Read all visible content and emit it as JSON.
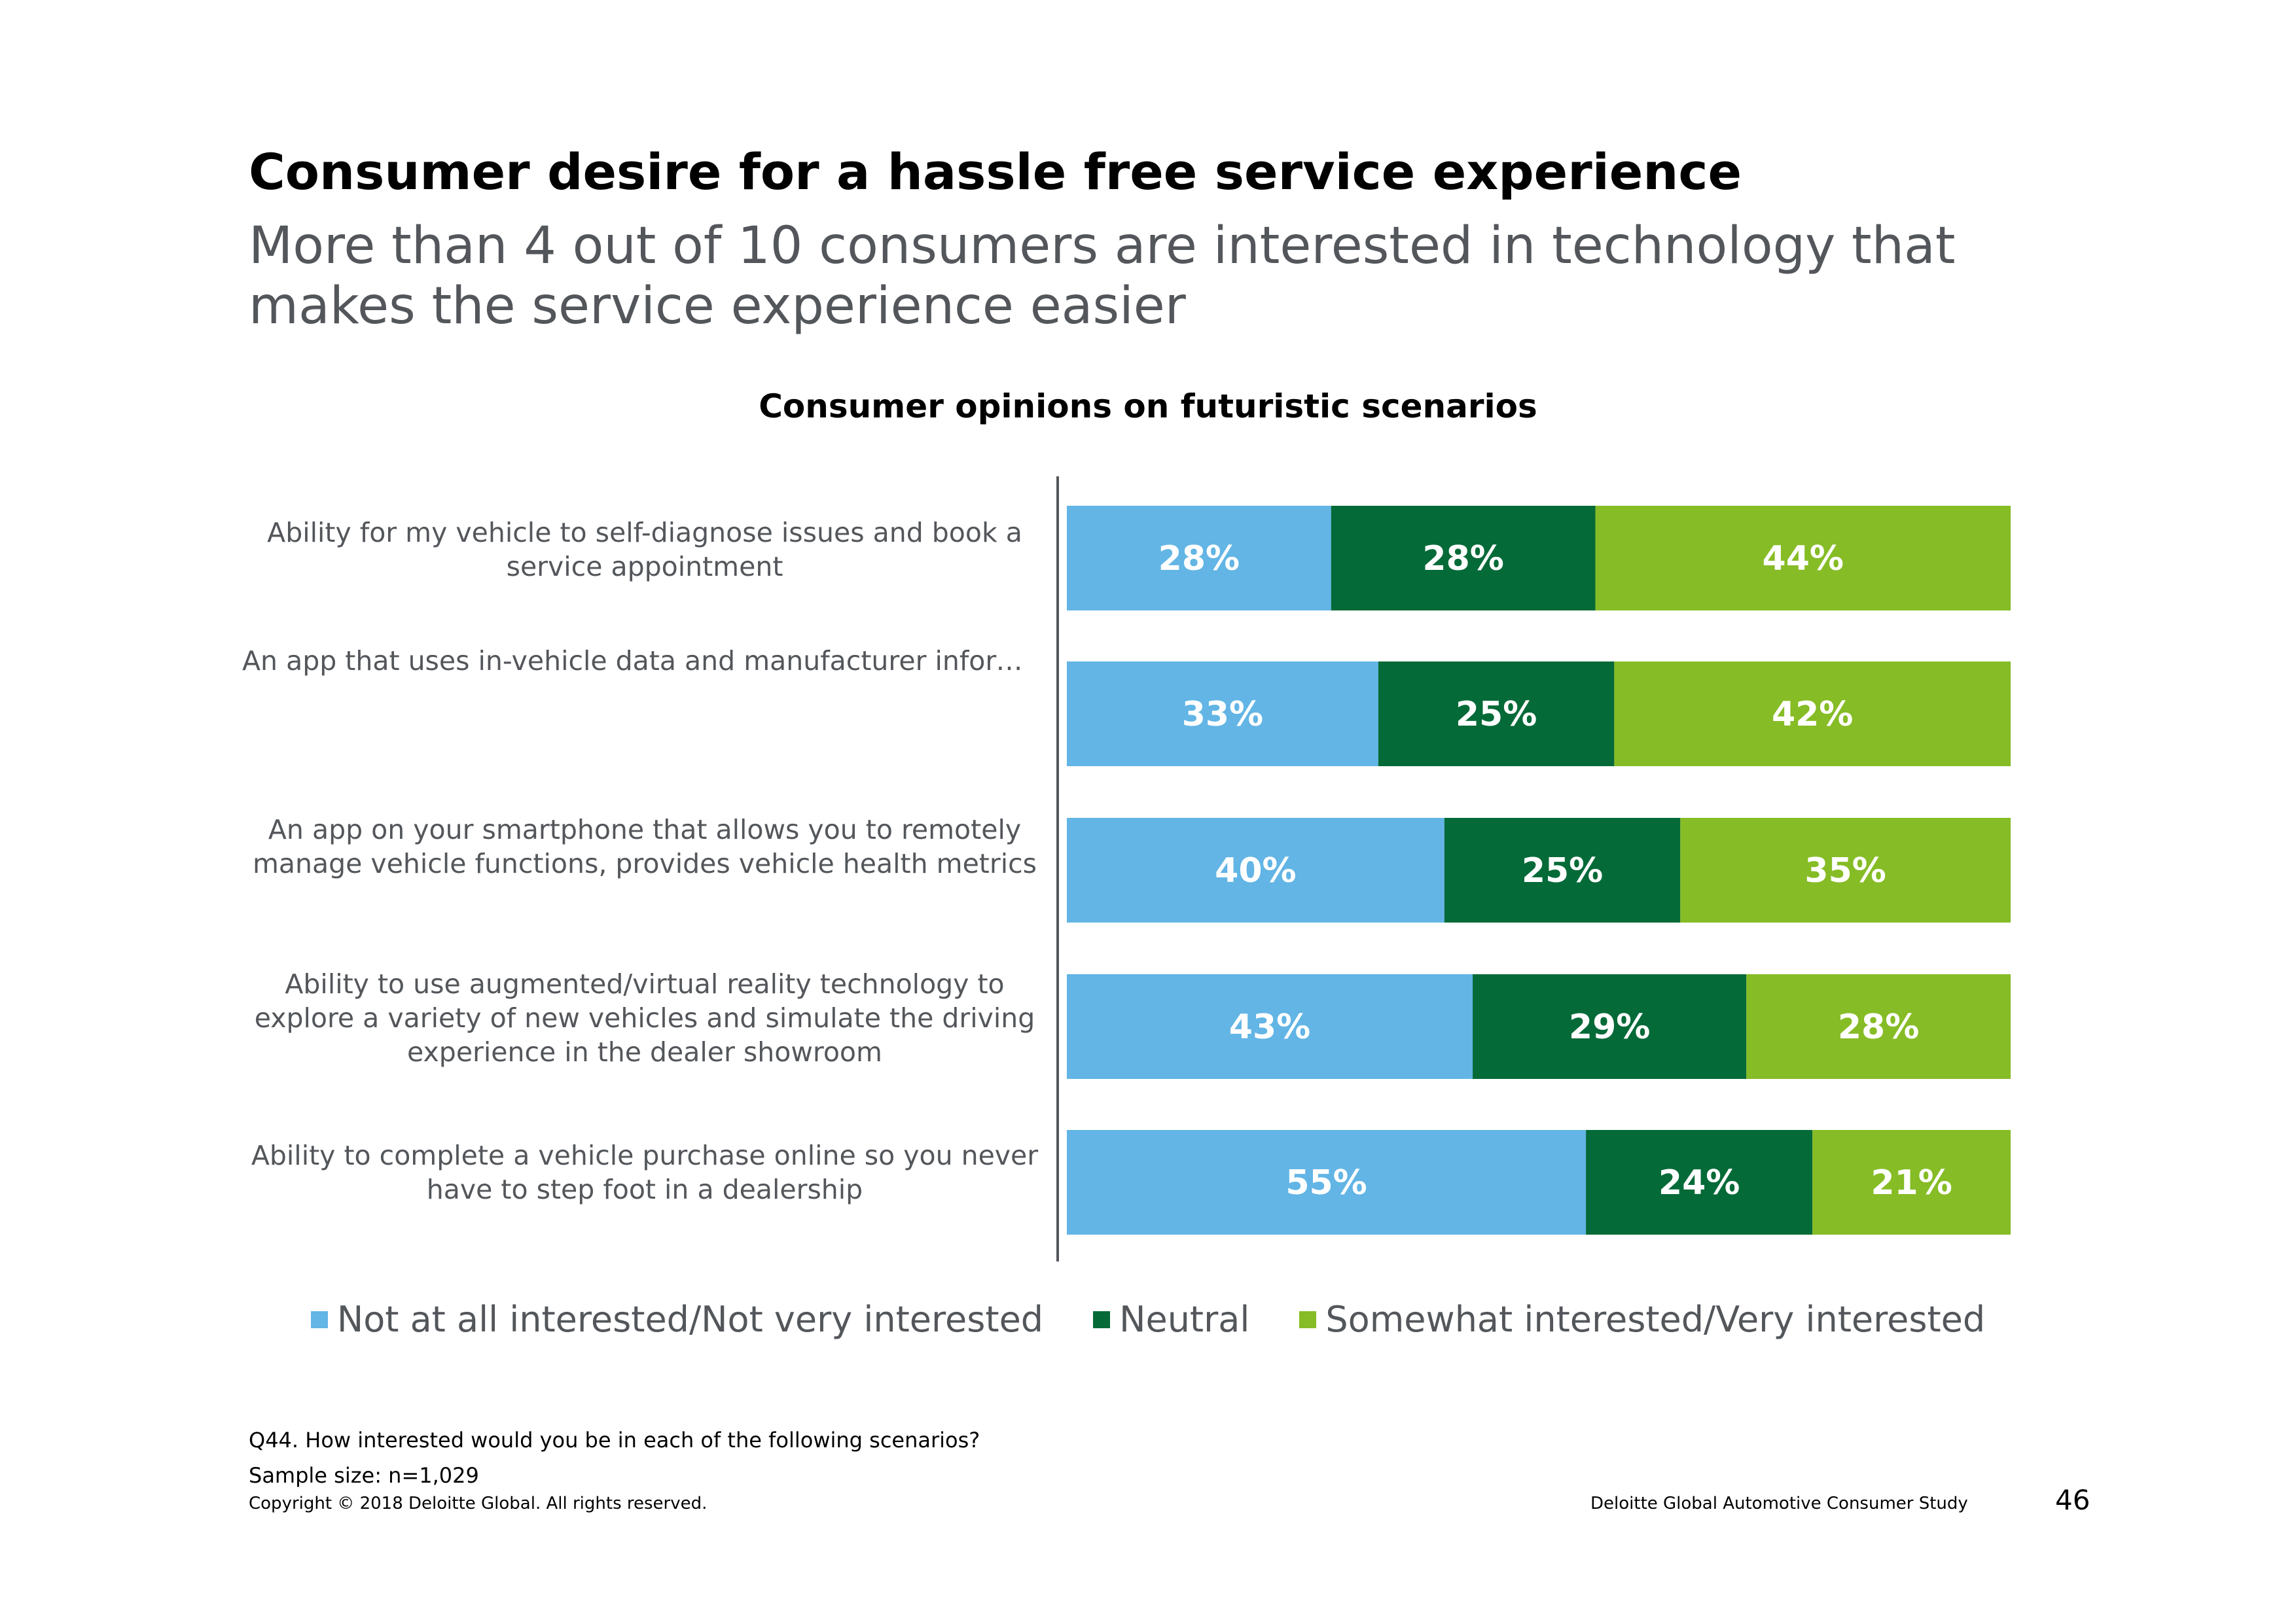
{
  "title": "Consumer desire for a hassle free service experience",
  "subtitle": "More than 4 out of 10 consumers are interested in technology that makes the service experience easier",
  "chart_data": {
    "type": "bar",
    "orientation": "horizontal",
    "stacked": true,
    "title": "Consumer opinions on futuristic scenarios",
    "categories": [
      "Ability for my vehicle to self-diagnose issues and book a service appointment",
      "An app that uses in-vehicle data and manufacturer information to explain to you what is going to be completed during an upcoming service appointment, how long it will likely take, and approximately what it…",
      "An app on your smartphone that allows you to remotely manage vehicle functions, provides vehicle health metrics",
      "Ability to use augmented/virtual reality technology to explore a variety of new vehicles and simulate the driving experience in the dealer showroom",
      "Ability to complete a vehicle purchase online so you never have to step foot in a dealership"
    ],
    "series": [
      {
        "name": "Not at all interested/Not very interested",
        "color": "#62b5e5",
        "values": [
          28,
          33,
          40,
          43,
          55
        ]
      },
      {
        "name": "Neutral",
        "color": "#046a38",
        "values": [
          28,
          25,
          25,
          29,
          24
        ]
      },
      {
        "name": "Somewhat interested/Very interested",
        "color": "#86bc25",
        "values": [
          44,
          42,
          35,
          28,
          21
        ]
      }
    ],
    "value_suffix": "%",
    "xlim": [
      0,
      100
    ],
    "legend_position": "bottom",
    "grid": false
  },
  "notes": {
    "question": "Q44. How interested would you be in each of the following scenarios?",
    "sample": "Sample size: n=1,029"
  },
  "footer": {
    "copyright": "Copyright © 2018 Deloitte Global. All rights reserved.",
    "source": "Deloitte Global Automotive Consumer Study",
    "page": "46"
  }
}
